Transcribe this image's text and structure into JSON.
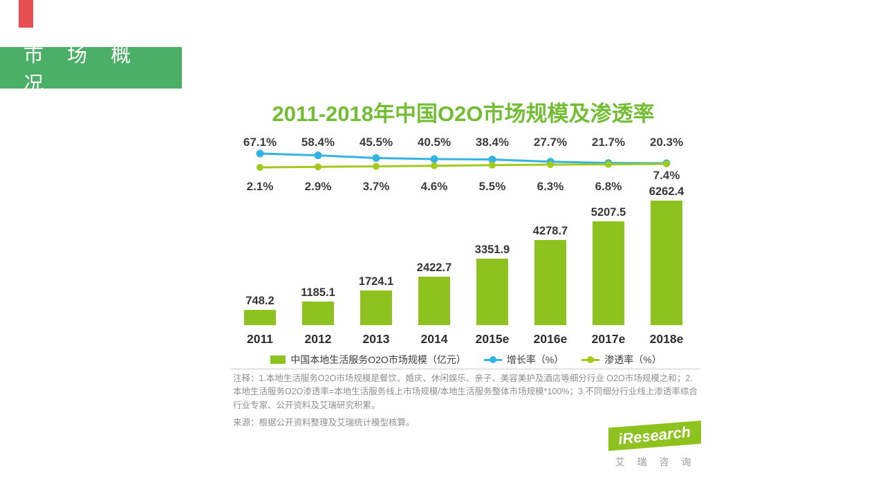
{
  "slide": {
    "corner_tag_color": "#e84f53",
    "section_banner": {
      "label": "市 场 概 况",
      "bg": "#4caf66"
    }
  },
  "chart_data": {
    "type": "bar",
    "subtype": "combo-bar-line",
    "title": "2011-2018年中国O2O市场规模及渗透率",
    "title_color": "#72bd33",
    "categories": [
      "2011",
      "2012",
      "2013",
      "2014",
      "2015e",
      "2016e",
      "2017e",
      "2018e"
    ],
    "series": [
      {
        "name": "中国本地生活服务O2O市场规模（亿元）",
        "type": "bar",
        "color": "#8dc21f",
        "values": [
          748.2,
          1185.1,
          1724.1,
          2422.7,
          3351.9,
          4278.7,
          5207.5,
          6262.4
        ],
        "labels": [
          "748.2",
          "1185.1",
          "1724.1",
          "2422.7",
          "3351.9",
          "4278.7",
          "5207.5",
          "6262.4"
        ]
      },
      {
        "name": "增长率（%）",
        "type": "line",
        "color": "#33b3e3",
        "values": [
          67.1,
          58.4,
          45.5,
          40.5,
          38.4,
          27.7,
          21.7,
          20.3
        ],
        "labels": [
          "67.1%",
          "58.4%",
          "45.5%",
          "40.5%",
          "38.4%",
          "27.7%",
          "21.7%",
          "20.3%"
        ]
      },
      {
        "name": "渗透率（%）",
        "type": "line",
        "color": "#a2c91c",
        "values": [
          2.1,
          2.9,
          3.7,
          4.6,
          5.5,
          6.3,
          6.8,
          7.4
        ],
        "labels": [
          "2.1%",
          "2.9%",
          "3.7%",
          "4.6%",
          "5.5%",
          "6.3%",
          "6.8%",
          "7.4%"
        ]
      }
    ],
    "legend_position": "bottom",
    "grid": false
  },
  "notes": {
    "text": "注释：1.本地生活服务O2O市场规模是餐饮、婚庆、休闲娱乐、亲子、美容美护及酒店等细分行业 O2O市场规模之和；2.本地生活服务O2O渗透率=本地生活服务线上市场规模/本地生活服务整体市场规模*100%；3.不同细分行业线上渗透率综合行业专家、公开资料及艾瑞研究积累。",
    "source": "来源：根据公开资料整理及艾瑞统计模型核算。"
  },
  "footer": {
    "logo_text": "iResearch",
    "logo_color": "#8dc21f",
    "logo_sub": "艾 瑞 咨 询"
  }
}
